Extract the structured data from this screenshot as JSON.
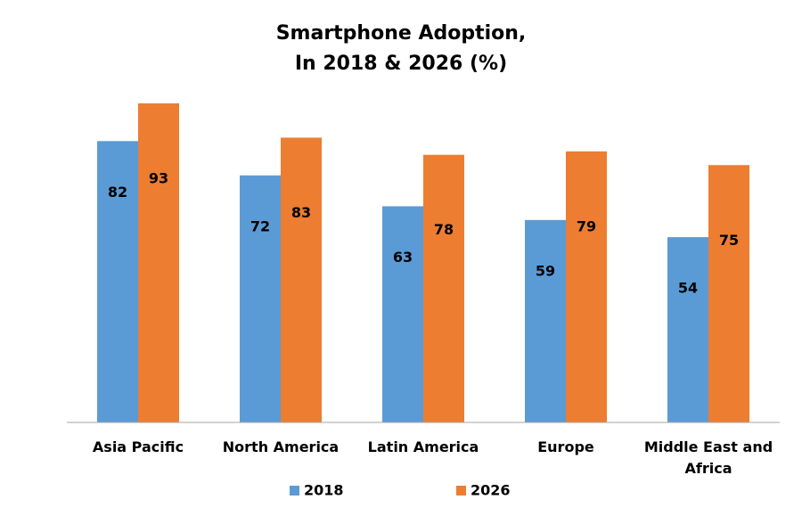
{
  "chart_data": {
    "type": "bar",
    "title": [
      "Smartphone Adoption,",
      "In 2018 & 2026 (%)"
    ],
    "categories": [
      "Asia Pacific",
      "North America",
      "Latin America",
      "Europe",
      "Middle East and Africa"
    ],
    "series": [
      {
        "name": "2018",
        "color": "#5b9bd5",
        "values": [
          82,
          72,
          63,
          59,
          54
        ]
      },
      {
        "name": "2026",
        "color": "#ed7d31",
        "values": [
          93,
          83,
          78,
          79,
          75
        ]
      }
    ]
  }
}
